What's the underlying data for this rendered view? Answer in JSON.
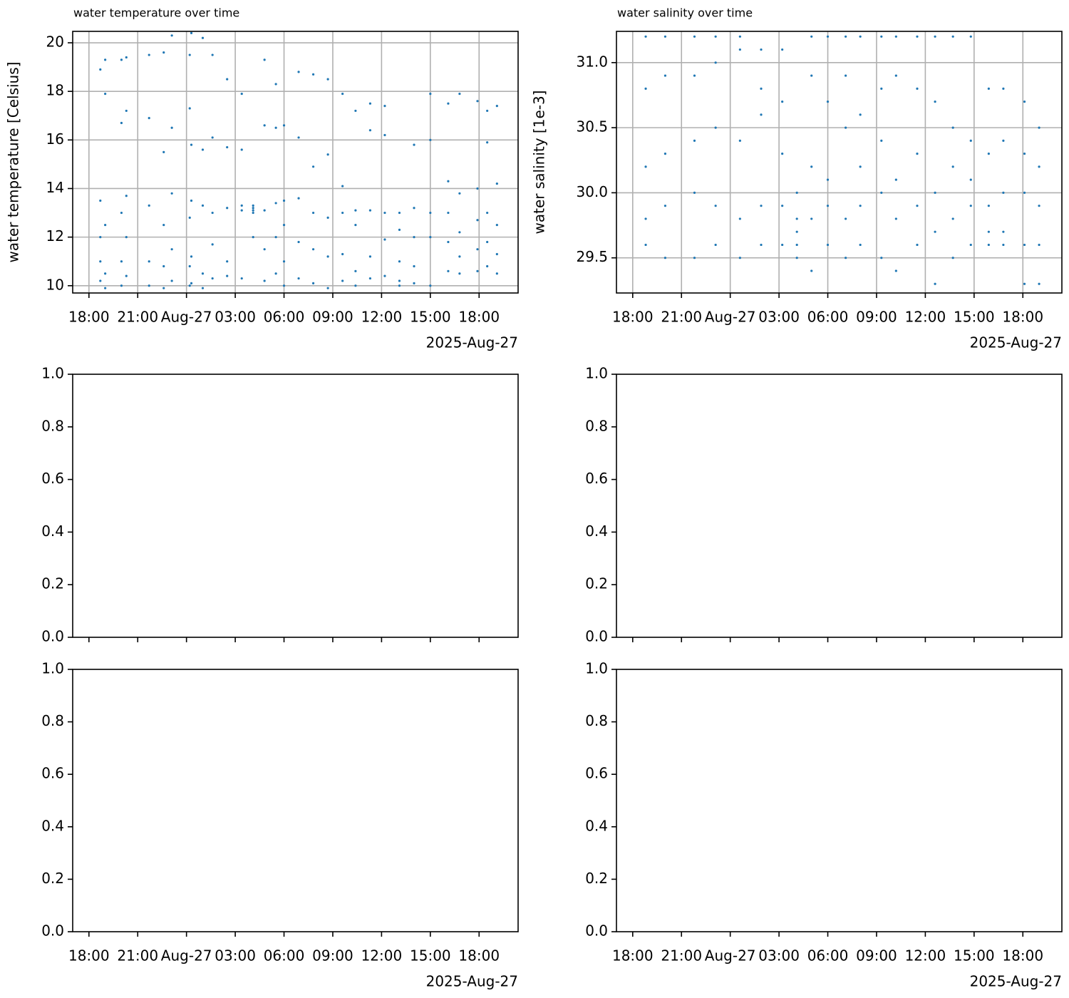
{
  "chart_data": [
    {
      "type": "scatter",
      "title": "water temperature over time",
      "ylabel": "water temperature [Celsius]",
      "x_offset_label": "2025-Aug-27",
      "color": "#1f77b4",
      "grid": true,
      "xlim": [
        -7.0,
        20.4
      ],
      "ylim": [
        9.7,
        20.47
      ],
      "xticks": [
        {
          "value": -6,
          "label": "18:00"
        },
        {
          "value": -3,
          "label": "21:00"
        },
        {
          "value": 0,
          "label": "Aug-27"
        },
        {
          "value": 3,
          "label": "03:00"
        },
        {
          "value": 6,
          "label": "06:00"
        },
        {
          "value": 9,
          "label": "09:00"
        },
        {
          "value": 12,
          "label": "12:00"
        },
        {
          "value": 15,
          "label": "15:00"
        },
        {
          "value": 18,
          "label": "18:00"
        }
      ],
      "yticks": [
        10,
        12,
        14,
        16,
        18,
        20
      ],
      "x": [
        -5.3,
        -5.3,
        -5.3,
        -5.3,
        -5.3,
        -5.0,
        -5.0,
        -5.0,
        -5.0,
        -5.0,
        -4.0,
        -4.0,
        -4.0,
        -4.0,
        -4.0,
        -3.7,
        -3.7,
        -3.7,
        -3.7,
        -3.7,
        -2.3,
        -2.3,
        -2.3,
        -2.3,
        -2.3,
        -1.4,
        -1.4,
        -1.4,
        -1.4,
        -1.4,
        -0.9,
        -0.9,
        -0.9,
        -0.9,
        -0.9,
        0.2,
        0.2,
        0.2,
        0.2,
        0.2,
        0.3,
        0.3,
        0.3,
        0.3,
        0.3,
        1.0,
        1.0,
        1.0,
        1.0,
        1.0,
        1.6,
        1.6,
        1.6,
        1.6,
        1.6,
        2.5,
        2.5,
        2.5,
        2.5,
        2.5,
        3.4,
        3.4,
        3.4,
        3.4,
        3.4,
        4.1,
        4.1,
        4.1,
        4.1,
        4.1,
        4.8,
        4.8,
        4.8,
        4.8,
        4.8,
        5.5,
        5.5,
        5.5,
        5.5,
        5.5,
        6.0,
        6.0,
        6.0,
        6.0,
        6.0,
        6.9,
        6.9,
        6.9,
        6.9,
        6.9,
        7.8,
        7.8,
        7.8,
        7.8,
        7.8,
        8.7,
        8.7,
        8.7,
        8.7,
        8.7,
        9.6,
        9.6,
        9.6,
        9.6,
        9.6,
        10.4,
        10.4,
        10.4,
        10.4,
        10.4,
        11.3,
        11.3,
        11.3,
        11.3,
        11.3,
        12.2,
        12.2,
        12.2,
        12.2,
        12.2,
        13.1,
        13.1,
        13.1,
        13.1,
        13.1,
        14.0,
        14.0,
        14.0,
        14.0,
        14.0,
        15.0,
        15.0,
        15.0,
        15.0,
        15.0,
        16.1,
        16.1,
        16.1,
        16.1,
        16.1,
        16.8,
        16.8,
        16.8,
        16.8,
        16.8,
        17.9,
        17.9,
        17.9,
        17.9,
        17.9,
        18.5,
        18.5,
        18.5,
        18.5,
        18.5,
        19.1,
        19.1,
        19.1,
        19.1,
        19.1
      ],
      "values": [
        18.9,
        13.5,
        12.0,
        11.0,
        10.2,
        19.3,
        17.9,
        12.5,
        10.5,
        9.9,
        19.3,
        16.7,
        13.0,
        11.0,
        10.0,
        19.4,
        17.2,
        13.7,
        12.0,
        10.4,
        19.5,
        16.9,
        13.3,
        11.0,
        10.0,
        19.6,
        15.5,
        12.5,
        10.8,
        9.9,
        20.3,
        16.5,
        13.8,
        11.5,
        10.2,
        19.5,
        17.3,
        12.8,
        10.8,
        10.0,
        20.4,
        15.8,
        13.5,
        11.2,
        10.1,
        20.2,
        15.6,
        13.3,
        10.5,
        9.9,
        19.5,
        16.1,
        13.0,
        11.7,
        10.3,
        18.5,
        15.7,
        13.2,
        11.0,
        10.4,
        17.9,
        15.6,
        13.1,
        13.3,
        10.3,
        13.2,
        13.1,
        13.3,
        13.0,
        12.0,
        19.3,
        16.6,
        13.1,
        11.5,
        10.2,
        18.3,
        16.5,
        13.4,
        12.0,
        10.5,
        16.6,
        13.5,
        12.5,
        11.0,
        10.0,
        18.8,
        16.1,
        13.6,
        11.8,
        10.3,
        18.7,
        14.9,
        13.0,
        11.5,
        10.1,
        18.5,
        15.4,
        12.8,
        11.2,
        9.9,
        17.9,
        14.1,
        13.0,
        11.3,
        10.2,
        17.2,
        13.1,
        12.5,
        10.6,
        10.0,
        17.5,
        16.4,
        13.1,
        11.2,
        10.3,
        17.4,
        16.2,
        13.0,
        11.9,
        10.4,
        13.0,
        12.3,
        11.0,
        10.2,
        10.0,
        15.8,
        13.2,
        12.0,
        10.8,
        10.1,
        17.9,
        16.0,
        13.0,
        12.0,
        10.0,
        17.5,
        14.3,
        13.0,
        11.8,
        10.6,
        17.9,
        13.8,
        12.2,
        11.2,
        10.5,
        17.6,
        14.0,
        12.7,
        11.5,
        10.6,
        17.2,
        15.9,
        13.0,
        11.8,
        10.8,
        17.4,
        14.2,
        12.5,
        11.3,
        10.5
      ]
    },
    {
      "type": "scatter",
      "title": "water salinity over time",
      "ylabel": "water salinity [1e-3]",
      "x_offset_label": "2025-Aug-27",
      "color": "#1f77b4",
      "grid": true,
      "xlim": [
        -7.0,
        20.4
      ],
      "ylim": [
        29.23,
        31.24
      ],
      "xticks": [
        {
          "value": -6,
          "label": "18:00"
        },
        {
          "value": -3,
          "label": "21:00"
        },
        {
          "value": 0,
          "label": "Aug-27"
        },
        {
          "value": 3,
          "label": "03:00"
        },
        {
          "value": 6,
          "label": "06:00"
        },
        {
          "value": 9,
          "label": "09:00"
        },
        {
          "value": 12,
          "label": "12:00"
        },
        {
          "value": 15,
          "label": "15:00"
        },
        {
          "value": 18,
          "label": "18:00"
        }
      ],
      "yticks": [
        29.5,
        {
          "value": 30,
          "label": "30.0"
        },
        30.5,
        {
          "value": 31,
          "label": "31.0"
        }
      ],
      "x": [
        -5.2,
        -5.2,
        -5.2,
        -5.2,
        -5.2,
        -4.0,
        -4.0,
        -4.0,
        -4.0,
        -4.0,
        -2.2,
        -2.2,
        -2.2,
        -2.2,
        -2.2,
        -0.9,
        -0.9,
        -0.9,
        -0.9,
        -0.9,
        0.6,
        0.6,
        0.6,
        0.6,
        0.6,
        1.9,
        1.9,
        1.9,
        1.9,
        1.9,
        3.2,
        3.2,
        3.2,
        3.2,
        3.2,
        4.1,
        4.1,
        4.1,
        4.1,
        4.1,
        5.0,
        5.0,
        5.0,
        5.0,
        5.0,
        6.0,
        6.0,
        6.0,
        6.0,
        6.0,
        7.1,
        7.1,
        7.1,
        7.1,
        7.1,
        8.0,
        8.0,
        8.0,
        8.0,
        8.0,
        9.3,
        9.3,
        9.3,
        9.3,
        9.3,
        10.2,
        10.2,
        10.2,
        10.2,
        10.2,
        11.5,
        11.5,
        11.5,
        11.5,
        11.5,
        12.6,
        12.6,
        12.6,
        12.6,
        12.6,
        13.7,
        13.7,
        13.7,
        13.7,
        13.7,
        14.8,
        14.8,
        14.8,
        14.8,
        14.8,
        15.9,
        15.9,
        15.9,
        15.9,
        15.9,
        16.8,
        16.8,
        16.8,
        16.8,
        16.8,
        18.1,
        18.1,
        18.1,
        18.1,
        18.1,
        19.0,
        19.0,
        19.0,
        19.0,
        19.0
      ],
      "values": [
        31.2,
        30.8,
        30.2,
        29.8,
        29.6,
        31.2,
        30.9,
        30.3,
        29.9,
        29.5,
        31.2,
        30.9,
        30.4,
        30.0,
        29.5,
        31.2,
        31.0,
        30.5,
        29.9,
        29.6,
        31.2,
        31.1,
        30.4,
        29.8,
        29.5,
        31.1,
        30.8,
        30.6,
        29.9,
        29.6,
        31.1,
        30.7,
        30.3,
        29.9,
        29.6,
        30.0,
        29.8,
        29.7,
        29.6,
        29.5,
        31.2,
        30.9,
        30.2,
        29.8,
        29.4,
        31.2,
        30.7,
        30.1,
        29.9,
        29.6,
        31.2,
        30.9,
        30.5,
        29.8,
        29.5,
        31.2,
        30.6,
        30.2,
        29.9,
        29.6,
        31.2,
        30.8,
        30.4,
        30.0,
        29.5,
        31.2,
        30.9,
        30.1,
        29.8,
        29.4,
        31.2,
        30.8,
        30.3,
        29.9,
        29.6,
        31.2,
        30.7,
        30.0,
        29.7,
        29.3,
        31.2,
        30.5,
        30.2,
        29.8,
        29.5,
        31.2,
        30.4,
        30.1,
        29.9,
        29.6,
        30.8,
        30.3,
        29.9,
        29.7,
        29.6,
        30.8,
        30.4,
        30.0,
        29.7,
        29.6,
        30.7,
        30.3,
        30.0,
        29.6,
        29.3,
        30.5,
        30.2,
        29.9,
        29.6,
        29.3
      ]
    },
    {
      "type": "scatter",
      "xlim": [
        -7.0,
        20.4
      ],
      "ylim": [
        0,
        1
      ],
      "xticks": [
        -6,
        -3,
        0,
        3,
        6,
        9,
        12,
        15,
        18
      ],
      "yticks": [
        {
          "value": 0,
          "label": "0.0"
        },
        0.2,
        0.4,
        0.6,
        0.8,
        {
          "value": 1,
          "label": "1.0"
        }
      ]
    },
    {
      "type": "scatter",
      "xlim": [
        -7.0,
        20.4
      ],
      "ylim": [
        0,
        1
      ],
      "xticks": [
        -6,
        -3,
        0,
        3,
        6,
        9,
        12,
        15,
        18
      ],
      "yticks": [
        {
          "value": 0,
          "label": "0.0"
        },
        0.2,
        0.4,
        0.6,
        0.8,
        {
          "value": 1,
          "label": "1.0"
        }
      ]
    },
    {
      "type": "scatter",
      "x_offset_label": "2025-Aug-27",
      "xlim": [
        -7.0,
        20.4
      ],
      "ylim": [
        0,
        1
      ],
      "xticks": [
        {
          "value": -6,
          "label": "18:00"
        },
        {
          "value": -3,
          "label": "21:00"
        },
        {
          "value": 0,
          "label": "Aug-27"
        },
        {
          "value": 3,
          "label": "03:00"
        },
        {
          "value": 6,
          "label": "06:00"
        },
        {
          "value": 9,
          "label": "09:00"
        },
        {
          "value": 12,
          "label": "12:00"
        },
        {
          "value": 15,
          "label": "15:00"
        },
        {
          "value": 18,
          "label": "18:00"
        }
      ],
      "yticks": [
        {
          "value": 0,
          "label": "0.0"
        },
        0.2,
        0.4,
        0.6,
        0.8,
        {
          "value": 1,
          "label": "1.0"
        }
      ]
    },
    {
      "type": "scatter",
      "x_offset_label": "2025-Aug-27",
      "xlim": [
        -7.0,
        20.4
      ],
      "ylim": [
        0,
        1
      ],
      "xticks": [
        {
          "value": -6,
          "label": "18:00"
        },
        {
          "value": -3,
          "label": "21:00"
        },
        {
          "value": 0,
          "label": "Aug-27"
        },
        {
          "value": 3,
          "label": "03:00"
        },
        {
          "value": 6,
          "label": "06:00"
        },
        {
          "value": 9,
          "label": "09:00"
        },
        {
          "value": 12,
          "label": "12:00"
        },
        {
          "value": 15,
          "label": "15:00"
        },
        {
          "value": 18,
          "label": "18:00"
        }
      ],
      "yticks": [
        {
          "value": 0,
          "label": "0.0"
        },
        0.2,
        0.4,
        0.6,
        0.8,
        {
          "value": 1,
          "label": "1.0"
        }
      ]
    }
  ]
}
